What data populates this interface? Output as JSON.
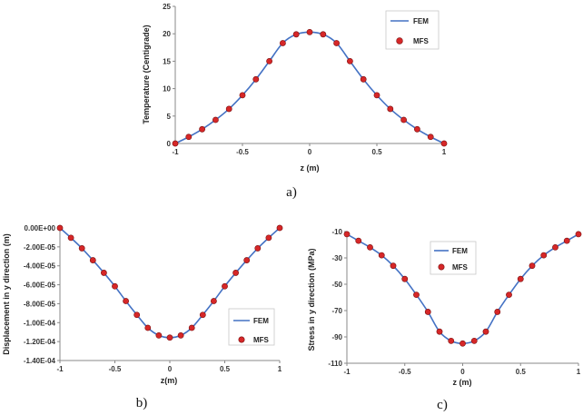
{
  "colors": {
    "fem_line": "#4472C4",
    "mfs_fill": "#D62728",
    "mfs_stroke": "#7A1010",
    "axis": "#888888"
  },
  "chart_data": [
    {
      "type": "line",
      "caption": "a)",
      "xlabel": "z (m)",
      "ylabel": "Temperature (Centigrade)",
      "xlim": [
        -1,
        1
      ],
      "ylim": [
        0,
        25
      ],
      "x_ticks": [
        -1,
        -0.5,
        0,
        0.5,
        1
      ],
      "x_tick_labels": [
        "-1",
        "-0.5",
        "0",
        "0.5",
        "1"
      ],
      "y_ticks": [
        0,
        5,
        10,
        15,
        20,
        25
      ],
      "y_tick_labels": [
        "0",
        "5",
        "10",
        "15",
        "20",
        "25"
      ],
      "legend_position": "top-right",
      "series": [
        {
          "name": "FEM",
          "style": "line",
          "x": [
            -1,
            -0.9,
            -0.8,
            -0.7,
            -0.6,
            -0.5,
            -0.4,
            -0.3,
            -0.2,
            -0.1,
            0,
            0.1,
            0.2,
            0.3,
            0.4,
            0.5,
            0.6,
            0.7,
            0.8,
            0.9,
            1
          ],
          "y": [
            0,
            1.2,
            2.6,
            4.3,
            6.3,
            8.8,
            11.7,
            15.0,
            18.3,
            19.9,
            20.3,
            19.9,
            18.3,
            15.0,
            11.7,
            8.8,
            6.3,
            4.3,
            2.6,
            1.2,
            0
          ]
        },
        {
          "name": "MFS",
          "style": "marker",
          "x": [
            -1,
            -0.9,
            -0.8,
            -0.7,
            -0.6,
            -0.5,
            -0.4,
            -0.3,
            -0.2,
            -0.1,
            0,
            0.1,
            0.2,
            0.3,
            0.4,
            0.5,
            0.6,
            0.7,
            0.8,
            0.9,
            1
          ],
          "y": [
            0,
            1.2,
            2.6,
            4.3,
            6.3,
            8.8,
            11.7,
            15.0,
            18.3,
            19.9,
            20.3,
            19.9,
            18.3,
            15.0,
            11.7,
            8.8,
            6.3,
            4.3,
            2.6,
            1.2,
            0
          ]
        }
      ]
    },
    {
      "type": "line",
      "caption": "b)",
      "xlabel": "z(m)",
      "ylabel": "Displacement in y direction (m)",
      "xlim": [
        -1,
        1
      ],
      "ylim": [
        -0.00014,
        0
      ],
      "x_ticks": [
        -1,
        -0.5,
        0,
        0.5,
        1
      ],
      "x_tick_labels": [
        "-1",
        "-0.5",
        "0",
        "0.5",
        "1"
      ],
      "y_ticks": [
        0,
        -2e-05,
        -4e-05,
        -6e-05,
        -8e-05,
        -0.0001,
        -0.00012,
        -0.00014
      ],
      "y_tick_labels": [
        "0.00E+00",
        "-2.00E-05",
        "-4.00E-05",
        "-6.00E-05",
        "-8.00E-05",
        "-1.00E-04",
        "-1.20E-04",
        "-1.40E-04"
      ],
      "legend_position": "bottom-right",
      "series": [
        {
          "name": "FEM",
          "style": "line",
          "x": [
            -1,
            -0.9,
            -0.8,
            -0.7,
            -0.6,
            -0.5,
            -0.4,
            -0.3,
            -0.2,
            -0.1,
            0,
            0.1,
            0.2,
            0.3,
            0.4,
            0.5,
            0.6,
            0.7,
            0.8,
            0.9,
            1
          ],
          "y": [
            0,
            -1.04e-05,
            -2.15e-05,
            -3.41e-05,
            -4.74e-05,
            -6.16e-05,
            -7.72e-05,
            -9.18e-05,
            -0.0001055,
            -0.0001135,
            -0.0001158,
            -0.0001135,
            -0.0001055,
            -9.18e-05,
            -7.72e-05,
            -6.16e-05,
            -4.74e-05,
            -3.41e-05,
            -2.15e-05,
            -1.04e-05,
            0
          ]
        },
        {
          "name": "MFS",
          "style": "marker",
          "x": [
            -1,
            -0.9,
            -0.8,
            -0.7,
            -0.6,
            -0.5,
            -0.4,
            -0.3,
            -0.2,
            -0.1,
            0,
            0.1,
            0.2,
            0.3,
            0.4,
            0.5,
            0.6,
            0.7,
            0.8,
            0.9,
            1
          ],
          "y": [
            0,
            -1.04e-05,
            -2.15e-05,
            -3.41e-05,
            -4.74e-05,
            -6.16e-05,
            -7.72e-05,
            -9.18e-05,
            -0.0001055,
            -0.0001135,
            -0.0001158,
            -0.0001135,
            -0.0001055,
            -9.18e-05,
            -7.72e-05,
            -6.16e-05,
            -4.74e-05,
            -3.41e-05,
            -2.15e-05,
            -1.04e-05,
            0
          ]
        }
      ]
    },
    {
      "type": "line",
      "caption": "c)",
      "xlabel": "z (m)",
      "ylabel": "Stress in y direction (MPa)",
      "xlim": [
        -1,
        1
      ],
      "ylim": [
        -110,
        -10
      ],
      "x_ticks": [
        -1,
        -0.5,
        0,
        0.5,
        1
      ],
      "x_tick_labels": [
        "-1",
        "-0.5",
        "0",
        "0.5",
        "1"
      ],
      "y_ticks": [
        -10,
        -30,
        -50,
        -70,
        -90,
        -110
      ],
      "y_tick_labels": [
        "-10",
        "-30",
        "-50",
        "-70",
        "-90",
        "-110"
      ],
      "legend_position": "top-left",
      "series": [
        {
          "name": "FEM",
          "style": "line",
          "x": [
            -1,
            -0.9,
            -0.8,
            -0.7,
            -0.6,
            -0.5,
            -0.4,
            -0.3,
            -0.2,
            -0.1,
            0,
            0.1,
            0.2,
            0.3,
            0.4,
            0.5,
            0.6,
            0.7,
            0.8,
            0.9,
            1
          ],
          "y": [
            -12,
            -17,
            -22,
            -28,
            -36,
            -46,
            -58,
            -71,
            -86,
            -93,
            -95,
            -93,
            -86,
            -71,
            -58,
            -46,
            -36,
            -28,
            -22,
            -17,
            -12
          ]
        },
        {
          "name": "MFS",
          "style": "marker",
          "x": [
            -1,
            -0.9,
            -0.8,
            -0.7,
            -0.6,
            -0.5,
            -0.4,
            -0.3,
            -0.2,
            -0.1,
            0,
            0.1,
            0.2,
            0.3,
            0.4,
            0.5,
            0.6,
            0.7,
            0.8,
            0.9,
            1
          ],
          "y": [
            -12,
            -17,
            -22,
            -28,
            -36,
            -46,
            -58,
            -71,
            -86,
            -93,
            -95,
            -93,
            -86,
            -71,
            -58,
            -46,
            -36,
            -28,
            -22,
            -17,
            -12
          ]
        }
      ]
    }
  ]
}
